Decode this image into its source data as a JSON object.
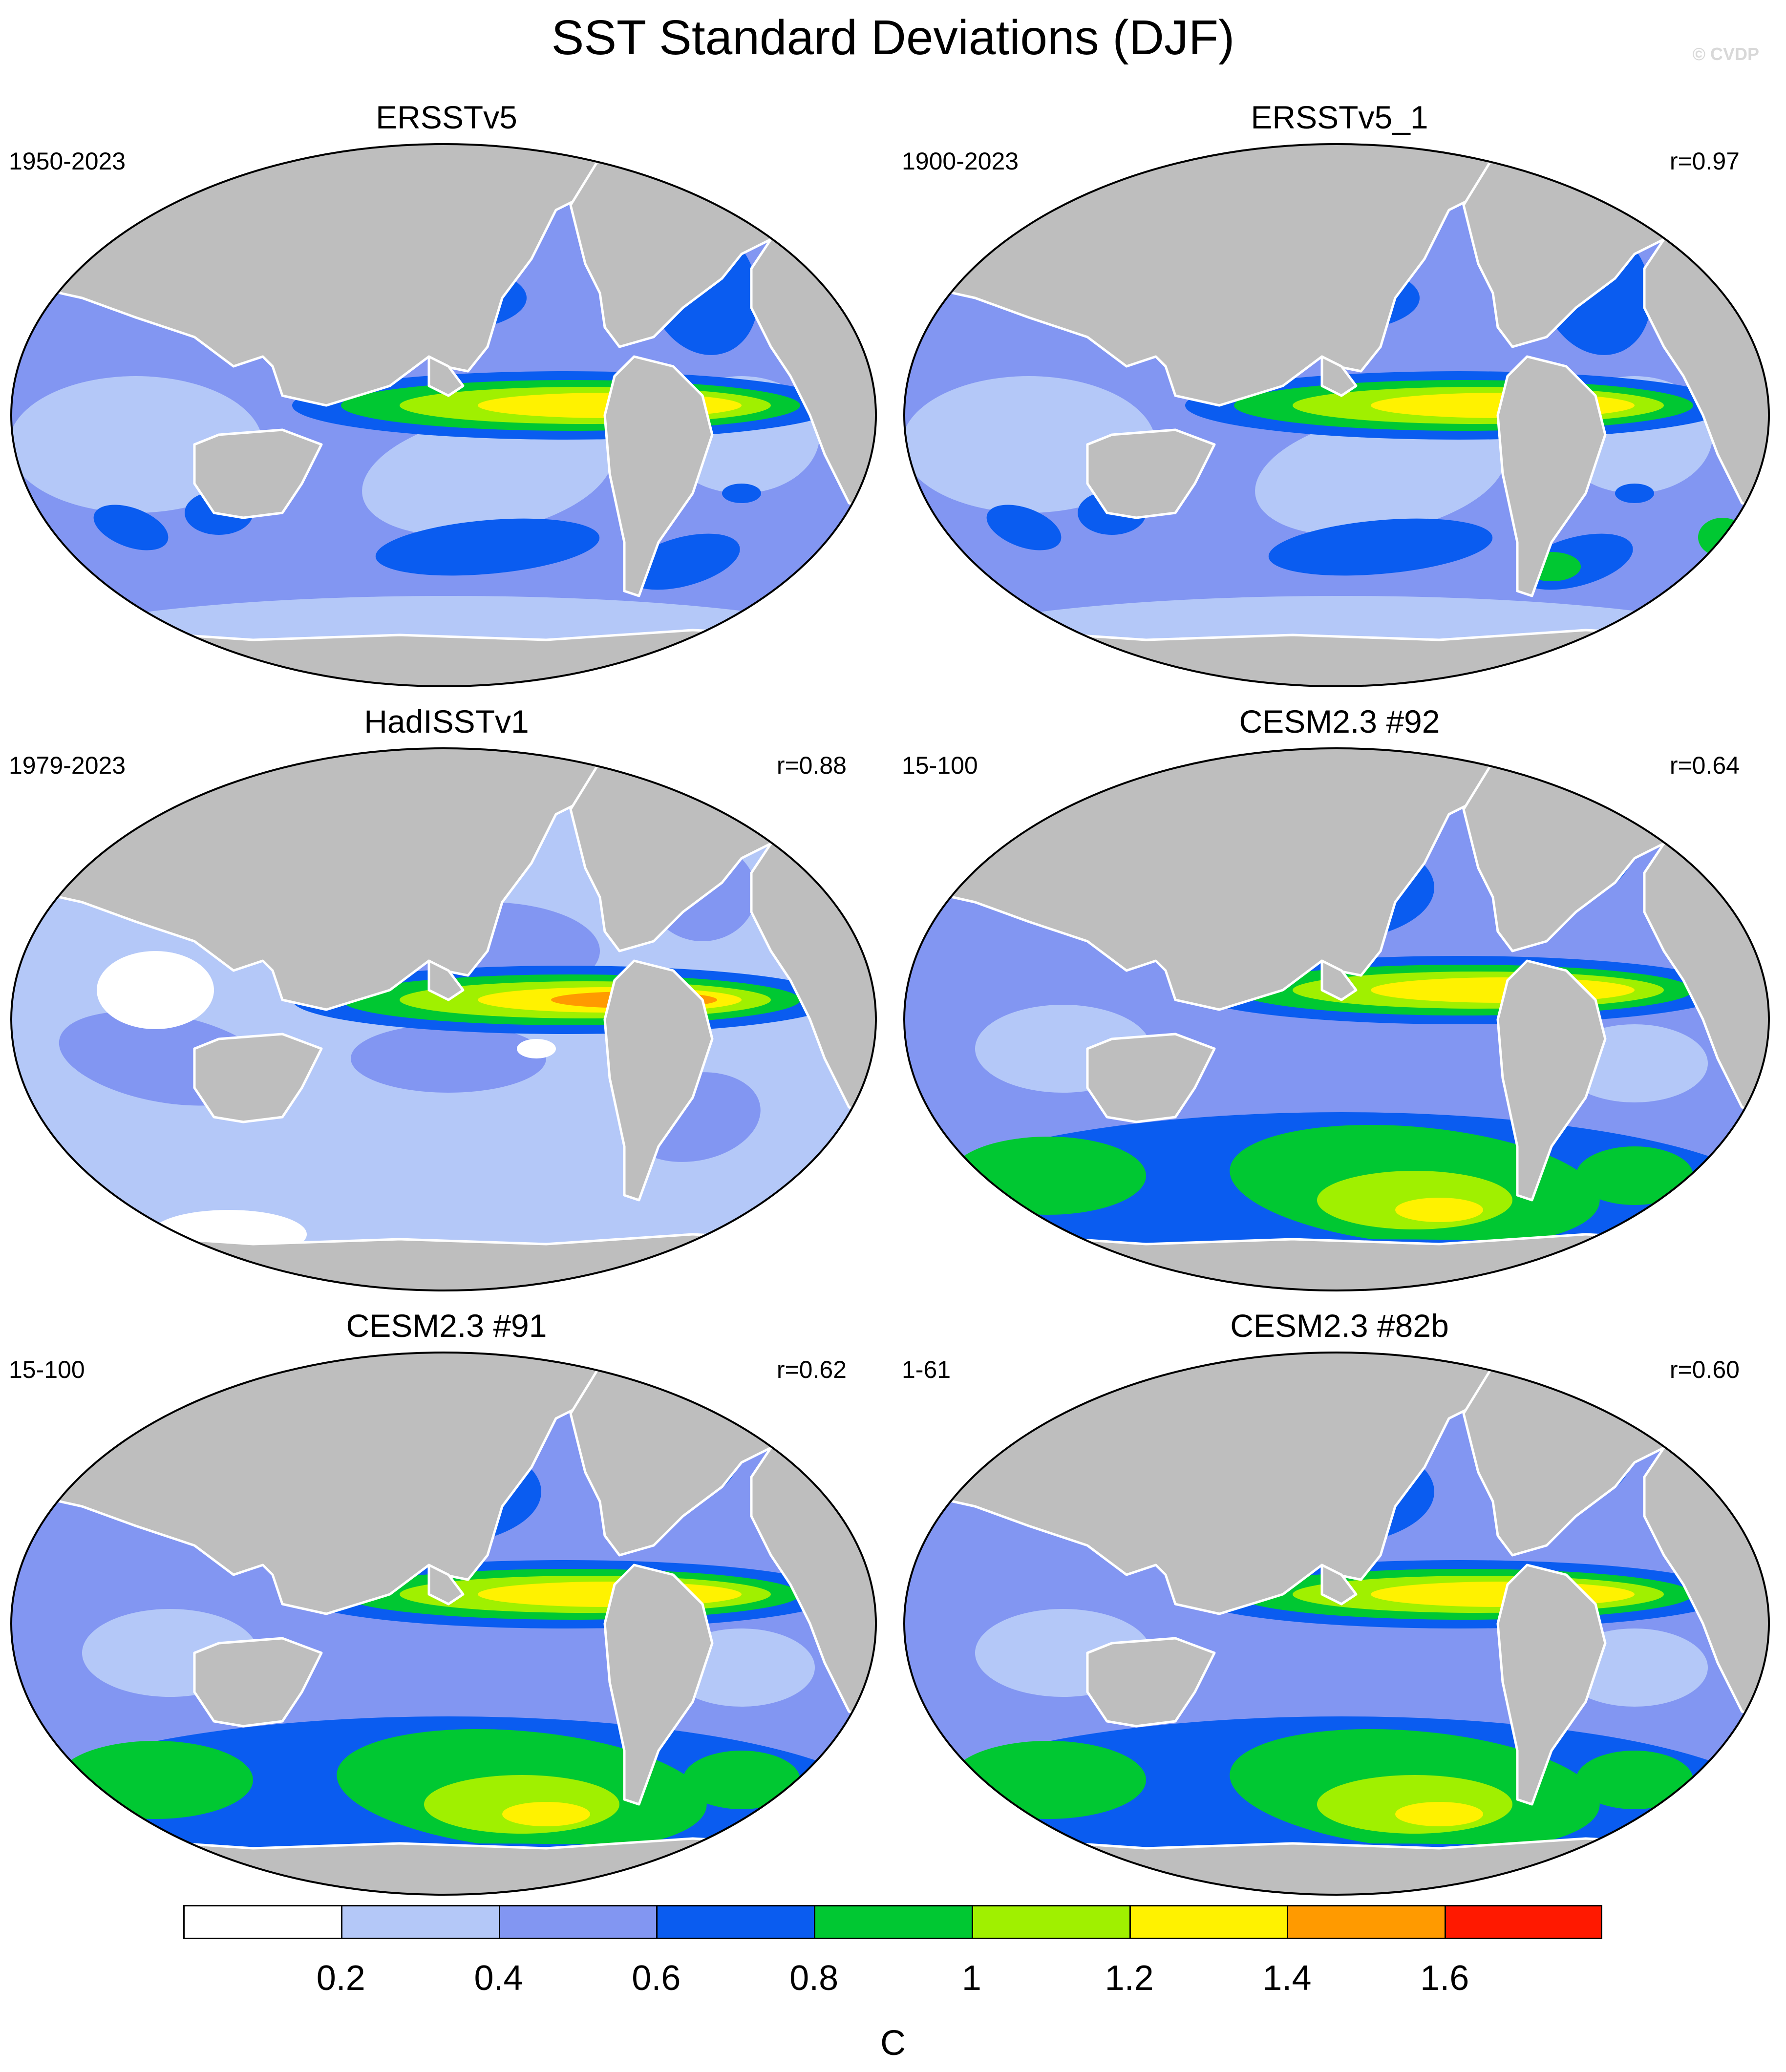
{
  "title": "SST Standard Deviations (DJF)",
  "watermark": "© CVDP",
  "panels": [
    {
      "id": "p0",
      "title": "ERSSTv5",
      "period": "1950-2023",
      "corr": "",
      "style": "obs_hi"
    },
    {
      "id": "p1",
      "title": "ERSSTv5_1",
      "period": "1900-2023",
      "corr": "r=0.97",
      "style": "obs_hi"
    },
    {
      "id": "p2",
      "title": "HadISSTv1",
      "period": "1979-2023",
      "corr": "r=0.88",
      "style": "obs_lo"
    },
    {
      "id": "p3",
      "title": "CESM2.3 #92",
      "period": "15-100",
      "corr": "r=0.64",
      "style": "model"
    },
    {
      "id": "p4",
      "title": "CESM2.3 #91",
      "period": "15-100",
      "corr": "r=0.62",
      "style": "model"
    },
    {
      "id": "p5",
      "title": "CESM2.3 #82b",
      "period": "1-61",
      "corr": "r=0.60",
      "style": "model"
    }
  ],
  "colorbar": {
    "unit": "C",
    "tick_labels": [
      "0.2",
      "0.4",
      "0.6",
      "0.8",
      "1",
      "1.2",
      "1.4",
      "1.6"
    ],
    "colors": [
      "#ffffff",
      "#b4c8f8",
      "#8296f2",
      "#0a5cf0",
      "#00c832",
      "#a0f000",
      "#fff200",
      "#ff9a00",
      "#ff1900"
    ]
  },
  "colors": {
    "land": "#bebebe",
    "coast": "#ffffff"
  }
}
